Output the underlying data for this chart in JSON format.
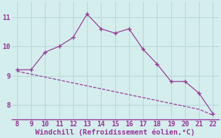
{
  "xlabel": "Windchill (Refroidissement éolien,°C)",
  "x_solid": [
    8,
    9,
    10,
    11,
    12,
    13,
    14,
    15,
    16,
    17,
    18,
    19,
    20,
    21,
    22
  ],
  "y_solid": [
    9.2,
    9.2,
    9.8,
    10.0,
    10.3,
    11.1,
    10.6,
    10.45,
    10.6,
    9.9,
    9.4,
    8.8,
    8.8,
    8.4,
    7.7
  ],
  "x_dashed": [
    8,
    9,
    10,
    11,
    12,
    13,
    14,
    15,
    16,
    17,
    18,
    19,
    20,
    21,
    22
  ],
  "y_dashed": [
    9.15,
    9.05,
    8.95,
    8.85,
    8.75,
    8.65,
    8.55,
    8.45,
    8.35,
    8.25,
    8.15,
    8.05,
    7.95,
    7.85,
    7.65
  ],
  "line_color": "#993399",
  "bg_color": "#d4eeed",
  "grid_color": "#b8d8d8",
  "spine_color": "#993399",
  "xlim": [
    7.6,
    22.4
  ],
  "ylim": [
    7.5,
    11.5
  ],
  "xticks": [
    8,
    9,
    10,
    11,
    12,
    13,
    14,
    15,
    16,
    17,
    18,
    19,
    20,
    21,
    22
  ],
  "yticks": [
    8,
    9,
    10,
    11
  ],
  "tick_fontsize": 7,
  "xlabel_fontsize": 7.5
}
